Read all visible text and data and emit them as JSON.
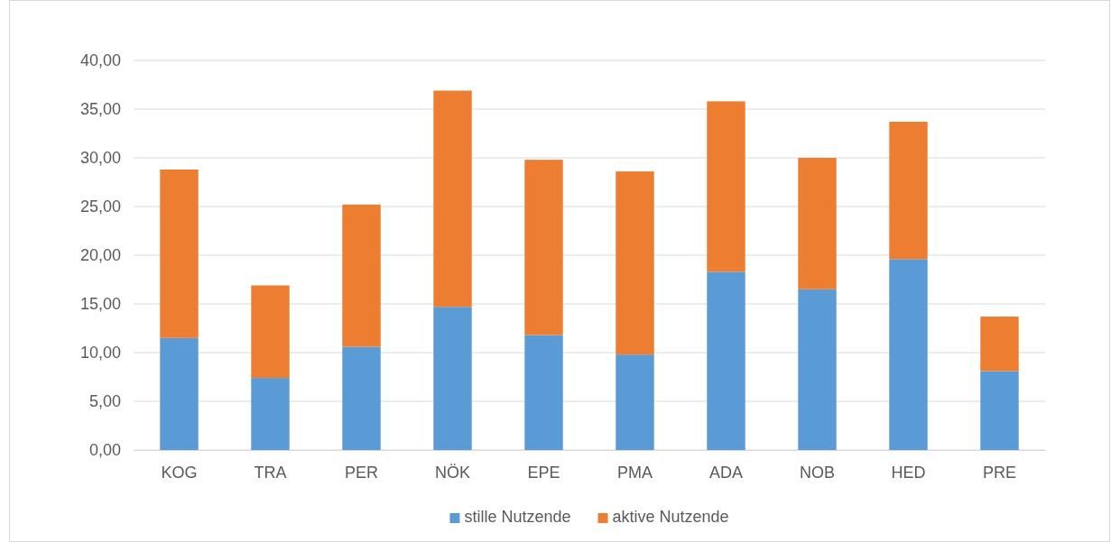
{
  "chart_data": {
    "type": "bar",
    "stacked": true,
    "categories": [
      "KOG",
      "TRA",
      "PER",
      "NÖK",
      "EPE",
      "PMA",
      "ADA",
      "NOB",
      "HED",
      "PRE"
    ],
    "series": [
      {
        "name": "stille Nutzende",
        "color": "#5b9bd5",
        "values": [
          11.5,
          7.4,
          10.6,
          14.7,
          11.8,
          9.8,
          18.3,
          16.5,
          19.6,
          8.1
        ]
      },
      {
        "name": "aktive Nutzende",
        "color": "#ed7d31",
        "values": [
          17.3,
          9.5,
          14.6,
          22.2,
          18.0,
          18.8,
          17.5,
          13.5,
          14.1,
          5.6
        ]
      }
    ],
    "ylim": [
      0,
      40
    ],
    "yticks": [
      {
        "value": 0,
        "label": "0,00"
      },
      {
        "value": 5,
        "label": "5,00"
      },
      {
        "value": 10,
        "label": "10,00"
      },
      {
        "value": 15,
        "label": "15,00"
      },
      {
        "value": 20,
        "label": "20,00"
      },
      {
        "value": 25,
        "label": "25,00"
      },
      {
        "value": 30,
        "label": "30,00"
      },
      {
        "value": 35,
        "label": "35,00"
      },
      {
        "value": 40,
        "label": "40,00"
      }
    ],
    "grid": "y",
    "legend": "bottom"
  }
}
